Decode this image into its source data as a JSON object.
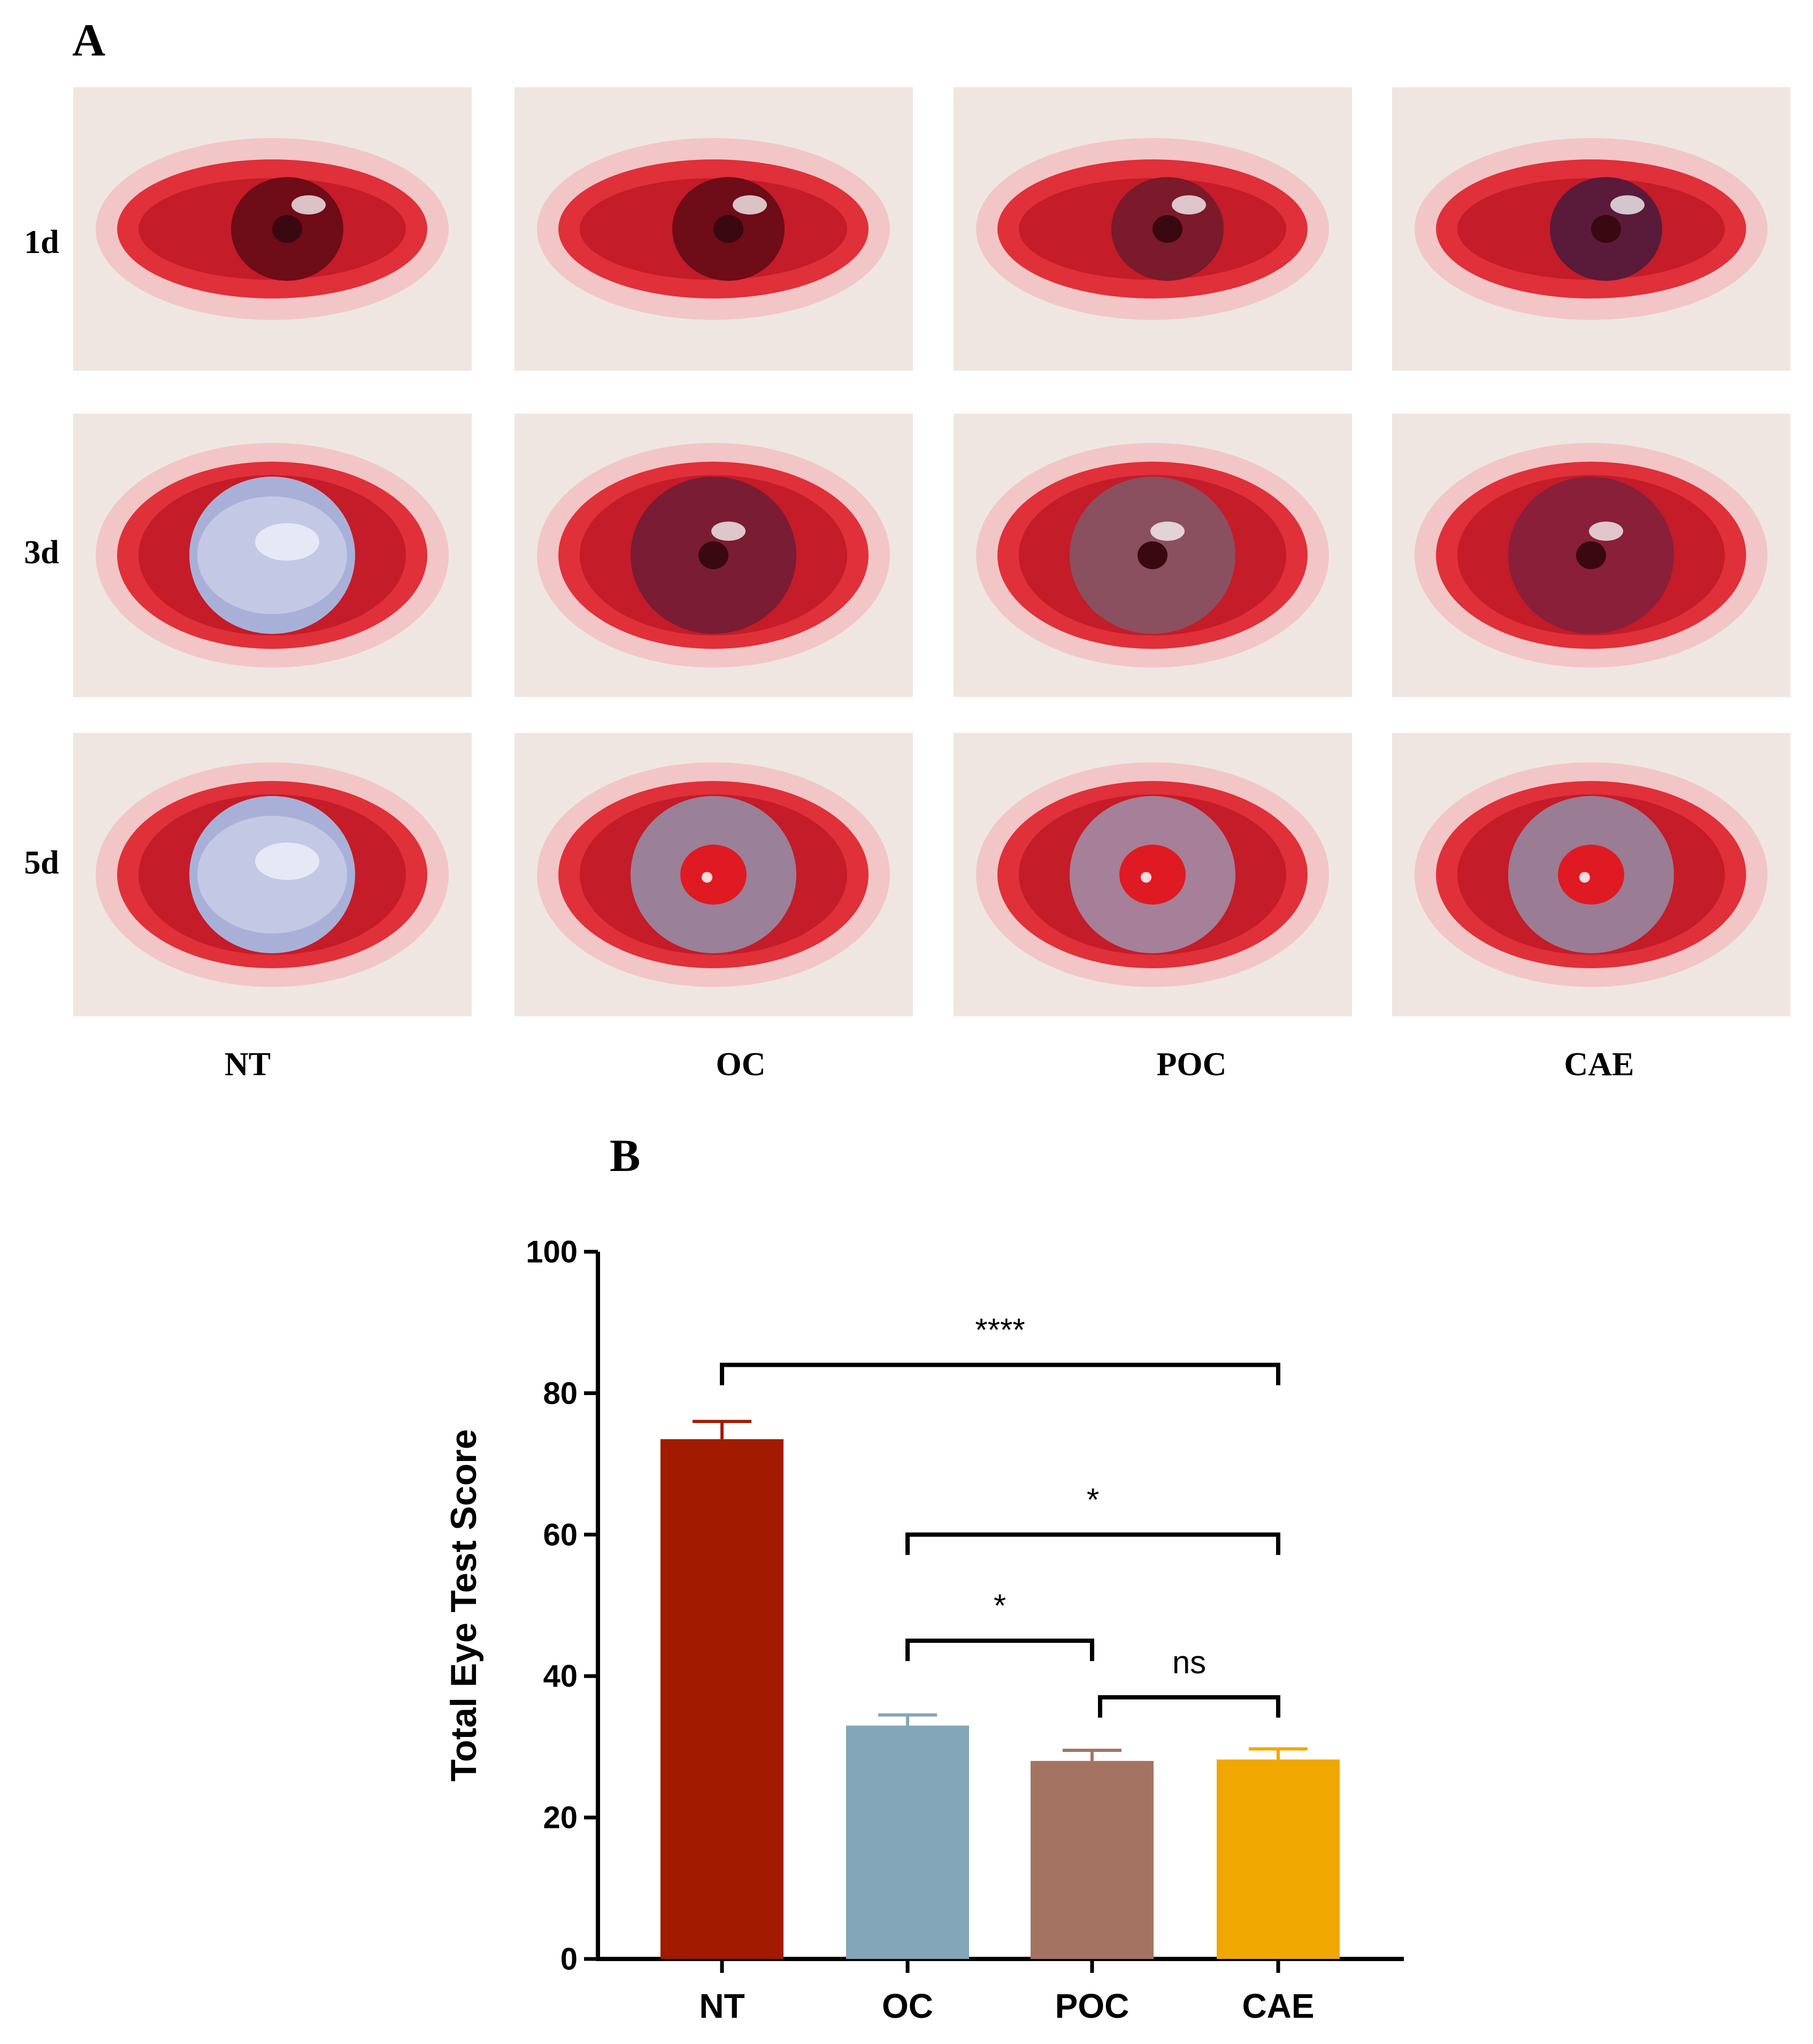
{
  "figure": {
    "panel_a_label": "A",
    "panel_b_label": "B",
    "row_labels": [
      "1d",
      "3d",
      "5d"
    ],
    "column_labels": [
      "NT",
      "OC",
      "POC",
      "CAE"
    ]
  },
  "chart_data": {
    "type": "bar",
    "categories": [
      "NT",
      "OC",
      "POC",
      "CAE"
    ],
    "values": [
      73.5,
      33.0,
      28.0,
      28.2
    ],
    "error": [
      2.5,
      1.5,
      1.5,
      1.5
    ],
    "colors": [
      "#a21a00",
      "#83a6b8",
      "#a57362",
      "#f0a800"
    ],
    "ylabel": "Total Eye Test Score",
    "xlabel": "",
    "ylim": [
      0,
      100
    ],
    "yticks": [
      0,
      20,
      40,
      60,
      80,
      100
    ],
    "grid": false,
    "legend": "none",
    "comparisons": [
      {
        "from": "NT",
        "to": "CAE",
        "label": "****",
        "y": 84
      },
      {
        "from": "OC",
        "to": "CAE",
        "label": "*",
        "y": 60
      },
      {
        "from": "OC",
        "to": "POC",
        "label": "*",
        "y": 45
      },
      {
        "from": "POC",
        "to": "CAE",
        "label": "ns",
        "y": 37
      }
    ]
  }
}
